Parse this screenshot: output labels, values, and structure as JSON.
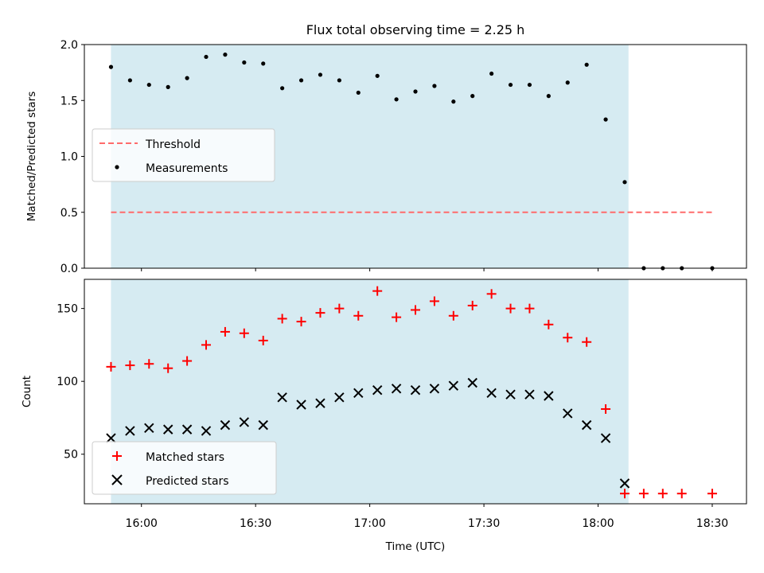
{
  "chart_data": [
    {
      "type": "scatter",
      "title": "Flux total observing time = 2.25 h",
      "xlabel": "",
      "ylabel": "Matched/Predicted stars",
      "xlim": [
        "15:45",
        "18:39"
      ],
      "ylim": [
        0,
        2.0
      ],
      "yticks": [
        "0.0",
        "0.5",
        "1.0",
        "1.5",
        "2.0"
      ],
      "shaded_x_range": [
        "15:52",
        "18:08"
      ],
      "shade_color": "#add8e6",
      "legend_position": "center-left",
      "series": [
        {
          "name": "Threshold",
          "kind": "dashed-line",
          "color": "#ff6b6b",
          "x": [
            "15:52",
            "18:30"
          ],
          "y": [
            0.5,
            0.5
          ]
        },
        {
          "name": "Measurements",
          "kind": "dots",
          "color": "#000000",
          "x": [
            "15:52",
            "15:57",
            "16:02",
            "16:07",
            "16:12",
            "16:17",
            "16:22",
            "16:27",
            "16:32",
            "16:37",
            "16:42",
            "16:47",
            "16:52",
            "16:57",
            "17:02",
            "17:07",
            "17:12",
            "17:17",
            "17:22",
            "17:27",
            "17:32",
            "17:37",
            "17:42",
            "17:47",
            "17:52",
            "17:57",
            "18:02",
            "18:07",
            "18:12",
            "18:17",
            "18:22",
            "18:30"
          ],
          "y": [
            1.8,
            1.68,
            1.64,
            1.62,
            1.7,
            1.89,
            1.91,
            1.84,
            1.83,
            1.61,
            1.68,
            1.73,
            1.68,
            1.57,
            1.72,
            1.51,
            1.58,
            1.63,
            1.49,
            1.54,
            1.74,
            1.64,
            1.64,
            1.54,
            1.66,
            1.82,
            1.33,
            0.77,
            0.0,
            0.0,
            0.0,
            0.0
          ]
        }
      ]
    },
    {
      "type": "scatter",
      "xlabel": "Time (UTC)",
      "ylabel": "Count",
      "xlim": [
        "15:45",
        "18:39"
      ],
      "ylim": [
        16,
        170
      ],
      "xticks": [
        "16:00",
        "16:30",
        "17:00",
        "17:30",
        "18:00",
        "18:30"
      ],
      "yticks": [
        "50",
        "100",
        "150"
      ],
      "shaded_x_range": [
        "15:52",
        "18:08"
      ],
      "shade_color": "#add8e6",
      "legend_position": "lower-left",
      "series": [
        {
          "name": "Matched stars",
          "kind": "plus",
          "color": "#ff0000",
          "x": [
            "15:52",
            "15:57",
            "16:02",
            "16:07",
            "16:12",
            "16:17",
            "16:22",
            "16:27",
            "16:32",
            "16:37",
            "16:42",
            "16:47",
            "16:52",
            "16:57",
            "17:02",
            "17:07",
            "17:12",
            "17:17",
            "17:22",
            "17:27",
            "17:32",
            "17:37",
            "17:42",
            "17:47",
            "17:52",
            "17:57",
            "18:02",
            "18:07",
            "18:12",
            "18:17",
            "18:22",
            "18:30"
          ],
          "y": [
            110,
            111,
            112,
            109,
            114,
            125,
            134,
            133,
            128,
            143,
            141,
            147,
            150,
            145,
            162,
            144,
            149,
            155,
            145,
            152,
            160,
            150,
            150,
            139,
            130,
            127,
            81,
            23,
            23,
            23,
            23,
            23
          ]
        },
        {
          "name": "Predicted stars",
          "kind": "x",
          "color": "#000000",
          "x": [
            "15:52",
            "15:57",
            "16:02",
            "16:07",
            "16:12",
            "16:17",
            "16:22",
            "16:27",
            "16:32",
            "16:37",
            "16:42",
            "16:47",
            "16:52",
            "16:57",
            "17:02",
            "17:07",
            "17:12",
            "17:17",
            "17:22",
            "17:27",
            "17:32",
            "17:37",
            "17:42",
            "17:47",
            "17:52",
            "17:57",
            "18:02",
            "18:07"
          ],
          "y": [
            61,
            66,
            68,
            67,
            67,
            66,
            70,
            72,
            70,
            89,
            84,
            85,
            89,
            92,
            94,
            95,
            94,
            95,
            97,
            99,
            92,
            91,
            91,
            90,
            78,
            70,
            61,
            30
          ]
        }
      ]
    }
  ]
}
